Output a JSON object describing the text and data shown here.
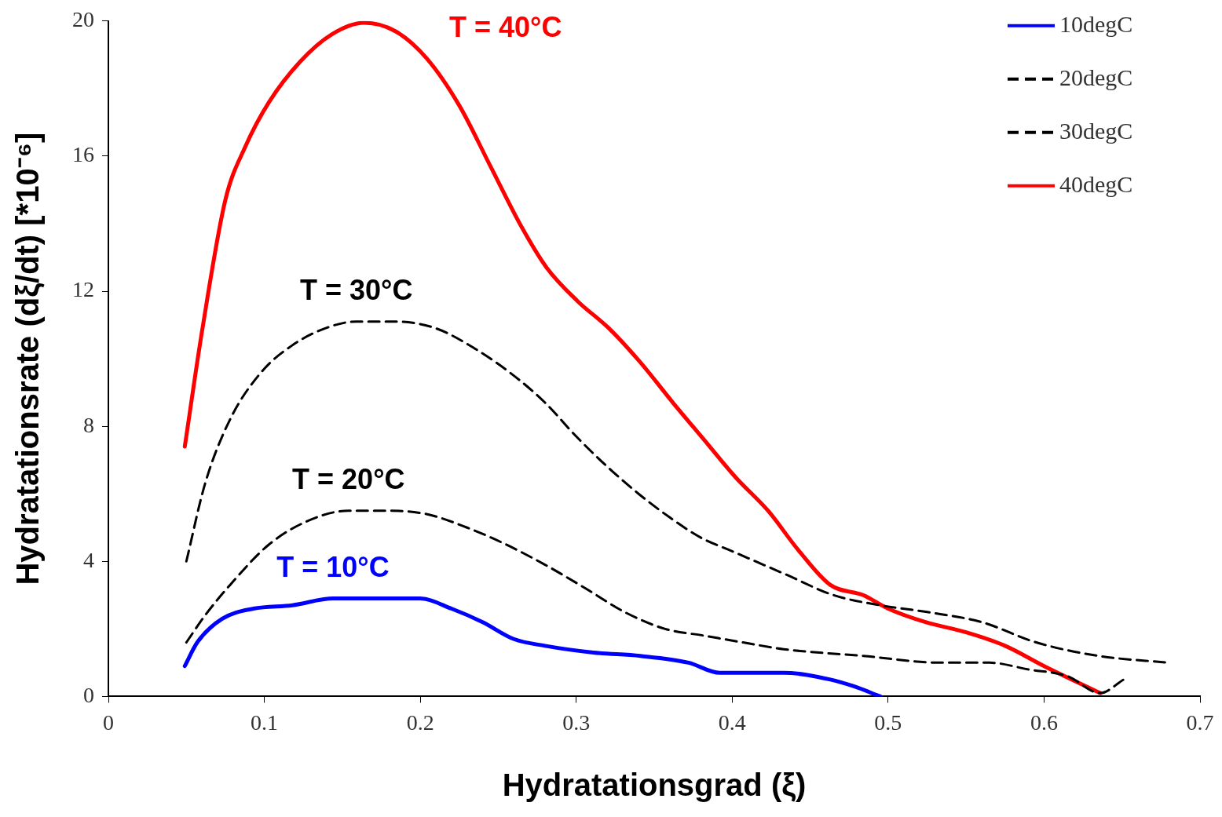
{
  "chart_data": {
    "type": "line",
    "xlabel": "Hydratationsgrad (ξ)",
    "ylabel": "Hydratationsrate (dξ/dt) [*10⁻⁶]",
    "xlim": [
      0,
      0.7
    ],
    "xticks": [
      0,
      0.1,
      0.2,
      0.3,
      0.4,
      0.5,
      0.6,
      0.7
    ],
    "ylim": [
      0,
      20
    ],
    "yticks": [
      0,
      4,
      8,
      12,
      16,
      20
    ],
    "grid": false,
    "legend": "top right",
    "marker": "none",
    "series": [
      {
        "name": "10degC",
        "color": "#0000ff",
        "line_style": "solid",
        "x": [
          0.049,
          0.057,
          0.073,
          0.093,
          0.118,
          0.144,
          0.169,
          0.2,
          0.22,
          0.24,
          0.26,
          0.28,
          0.311,
          0.341,
          0.372,
          0.392,
          0.412,
          0.433,
          0.463,
          0.478,
          0.495
        ],
        "values": [
          0.9,
          1.6,
          2.3,
          2.6,
          2.7,
          2.9,
          2.9,
          2.9,
          2.6,
          2.2,
          1.7,
          1.5,
          1.3,
          1.2,
          1.0,
          0.7,
          0.7,
          0.7,
          0.5,
          0.3,
          0
        ]
      },
      {
        "name": "20degC",
        "color": "#000000",
        "line_style": "dashed",
        "x": [
          0.05,
          0.062,
          0.078,
          0.103,
          0.128,
          0.154,
          0.179,
          0.204,
          0.23,
          0.255,
          0.28,
          0.306,
          0.331,
          0.357,
          0.382,
          0.407,
          0.433,
          0.484,
          0.534,
          0.565,
          0.59,
          0.615,
          0.636,
          0.651
        ],
        "values": [
          1.6,
          2.4,
          3.3,
          4.5,
          5.2,
          5.5,
          5.5,
          5.4,
          5.0,
          4.5,
          3.9,
          3.2,
          2.5,
          2.0,
          1.8,
          1.6,
          1.4,
          1.2,
          1.0,
          1.0,
          0.8,
          0.6,
          0.1,
          0.5
        ]
      },
      {
        "name": "30degC",
        "color": "#000000",
        "line_style": "dashed",
        "x": [
          0.05,
          0.062,
          0.078,
          0.098,
          0.118,
          0.139,
          0.159,
          0.184,
          0.21,
          0.235,
          0.26,
          0.28,
          0.3,
          0.32,
          0.34,
          0.36,
          0.38,
          0.4,
          0.435,
          0.465,
          0.495,
          0.525,
          0.56,
          0.595,
          0.635,
          0.68
        ],
        "values": [
          4.0,
          6.3,
          8.2,
          9.6,
          10.4,
          10.9,
          11.1,
          11.1,
          10.9,
          10.3,
          9.5,
          8.7,
          7.7,
          6.8,
          6.0,
          5.3,
          4.7,
          4.3,
          3.6,
          3.0,
          2.7,
          2.5,
          2.2,
          1.6,
          1.2,
          1.0
        ]
      },
      {
        "name": "40degC",
        "color": "#ff0000",
        "line_style": "solid",
        "x": [
          0.049,
          0.06,
          0.075,
          0.088,
          0.103,
          0.123,
          0.143,
          0.164,
          0.184,
          0.204,
          0.225,
          0.245,
          0.265,
          0.281,
          0.301,
          0.321,
          0.341,
          0.362,
          0.382,
          0.402,
          0.423,
          0.443,
          0.463,
          0.484,
          0.5,
          0.524,
          0.55,
          0.575,
          0.6,
          0.636
        ],
        "values": [
          7.4,
          10.8,
          14.7,
          16.3,
          17.6,
          18.8,
          19.6,
          19.95,
          19.7,
          18.9,
          17.5,
          15.7,
          13.9,
          12.7,
          11.7,
          10.9,
          9.9,
          8.7,
          7.6,
          6.5,
          5.5,
          4.3,
          3.3,
          3.0,
          2.6,
          2.2,
          1.9,
          1.5,
          0.9,
          0.1
        ]
      }
    ],
    "annotations": [
      "T = 10°C",
      "T = 20°C",
      "T = 30°C",
      "T = 40°C"
    ]
  }
}
